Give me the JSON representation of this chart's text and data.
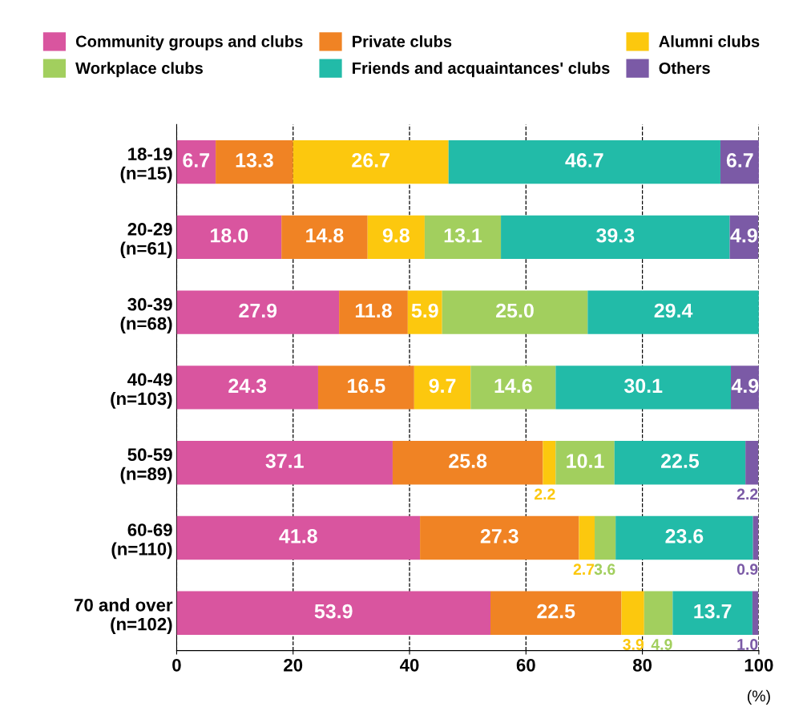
{
  "chart_data": {
    "type": "bar",
    "orientation": "horizontal",
    "stacked": true,
    "categories": [
      "18-19\n(n=15)",
      "20-29\n(n=61)",
      "30-39\n(n=68)",
      "40-49\n(n=103)",
      "50-59\n(n=89)",
      "60-69\n(n=110)",
      "70 and over\n(n=102)"
    ],
    "series": [
      {
        "name": "Community groups and clubs",
        "color": "#d9559f",
        "values": [
          6.7,
          18.0,
          27.9,
          24.3,
          37.1,
          41.8,
          53.9
        ],
        "value_labels": [
          "6.7",
          "18.0",
          "27.9",
          "24.3",
          "37.1",
          "41.8",
          "53.9"
        ]
      },
      {
        "name": "Private clubs",
        "color": "#f08324",
        "values": [
          13.3,
          14.8,
          11.8,
          16.5,
          25.8,
          27.3,
          22.5
        ],
        "value_labels": [
          "13.3",
          "14.8",
          "11.8",
          "16.5",
          "25.8",
          "27.3",
          "22.5"
        ]
      },
      {
        "name": "Alumni clubs",
        "color": "#fcc80e",
        "values": [
          26.7,
          9.8,
          5.9,
          9.7,
          2.2,
          2.7,
          3.9
        ],
        "value_labels": [
          "26.7",
          "9.8",
          "5.9",
          "9.7",
          "2.2",
          "2.7",
          "3.9"
        ]
      },
      {
        "name": "Workplace clubs",
        "color": "#a2cf5e",
        "values": [
          0,
          13.1,
          25.0,
          14.6,
          10.1,
          3.6,
          4.9
        ],
        "value_labels": [
          null,
          "13.1",
          "25.0",
          "14.6",
          "10.1",
          "3.6",
          "4.9"
        ]
      },
      {
        "name": "Friends and acquaintances' clubs",
        "color": "#22bba8",
        "values": [
          46.7,
          39.3,
          29.4,
          30.1,
          22.5,
          23.6,
          13.7
        ],
        "value_labels": [
          "46.7",
          "39.3",
          "29.4",
          "30.1",
          "22.5",
          "23.6",
          "13.7"
        ]
      },
      {
        "name": "Others",
        "color": "#7b5aa6",
        "values": [
          6.7,
          4.9,
          0,
          4.9,
          2.2,
          0.9,
          1.0
        ],
        "value_labels": [
          "6.7",
          "4.9",
          null,
          "4.9",
          "2.2",
          "0.9",
          "1.0"
        ]
      }
    ],
    "xlim": [
      0,
      100
    ],
    "xticks": [
      0,
      20,
      40,
      60,
      80,
      100
    ],
    "grid": "x",
    "line_style": "dashed",
    "legend": "top",
    "annotations": [
      "(%)"
    ]
  }
}
